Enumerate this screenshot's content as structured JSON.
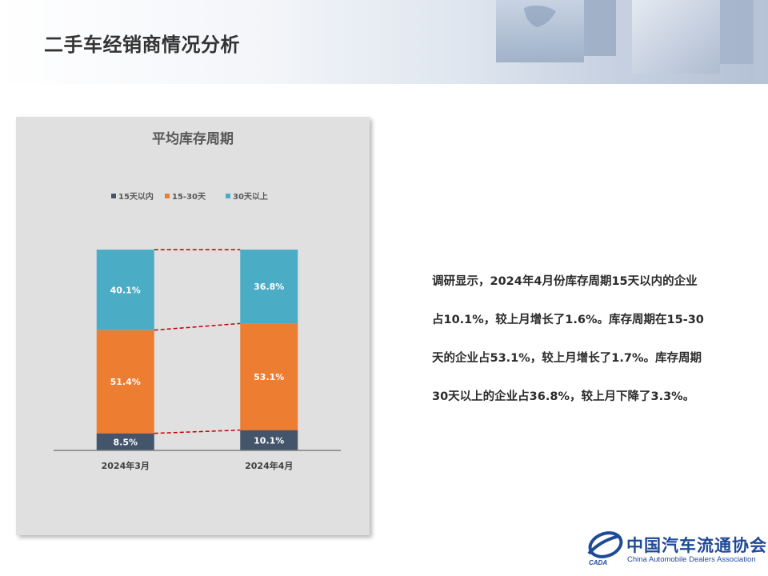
{
  "page": {
    "title": "二手车经销商情况分析"
  },
  "analysis": {
    "lines": [
      "调研显示，2024年4月份库存周期15天以内的企业",
      "占10.1%，较上月增长了1.6%。库存周期在15-30",
      "天的企业占53.1%，较上月增长了1.7%。库存周期",
      "30天以上的企业占36.8%，较上月下降了3.3%。"
    ]
  },
  "footer": {
    "org_name_cn": "中国汽车流通协会",
    "org_name_en": "China Automobile Dealers Association",
    "logo_text": "CADA"
  },
  "chart_data": {
    "type": "bar",
    "stacked": true,
    "title": "平均库存周期",
    "categories": [
      "2024年3月",
      "2024年4月"
    ],
    "series": [
      {
        "name": "15天以内",
        "values": [
          8.5,
          10.1
        ],
        "labels": [
          "8.5%",
          "10.1%"
        ],
        "color": "#44546a"
      },
      {
        "name": "15-30天",
        "values": [
          51.4,
          53.1
        ],
        "labels": [
          "51.4%",
          "53.1%"
        ],
        "color": "#ed7d31"
      },
      {
        "name": "30天以上",
        "values": [
          40.1,
          36.8
        ],
        "labels": [
          "40.1%",
          "36.8%"
        ],
        "color": "#4bacc6"
      }
    ],
    "series_lines": true,
    "series_line_color": "#c00000",
    "ylim": [
      0,
      100
    ],
    "legend": "top",
    "grid": false,
    "xlabel": "",
    "ylabel": ""
  }
}
